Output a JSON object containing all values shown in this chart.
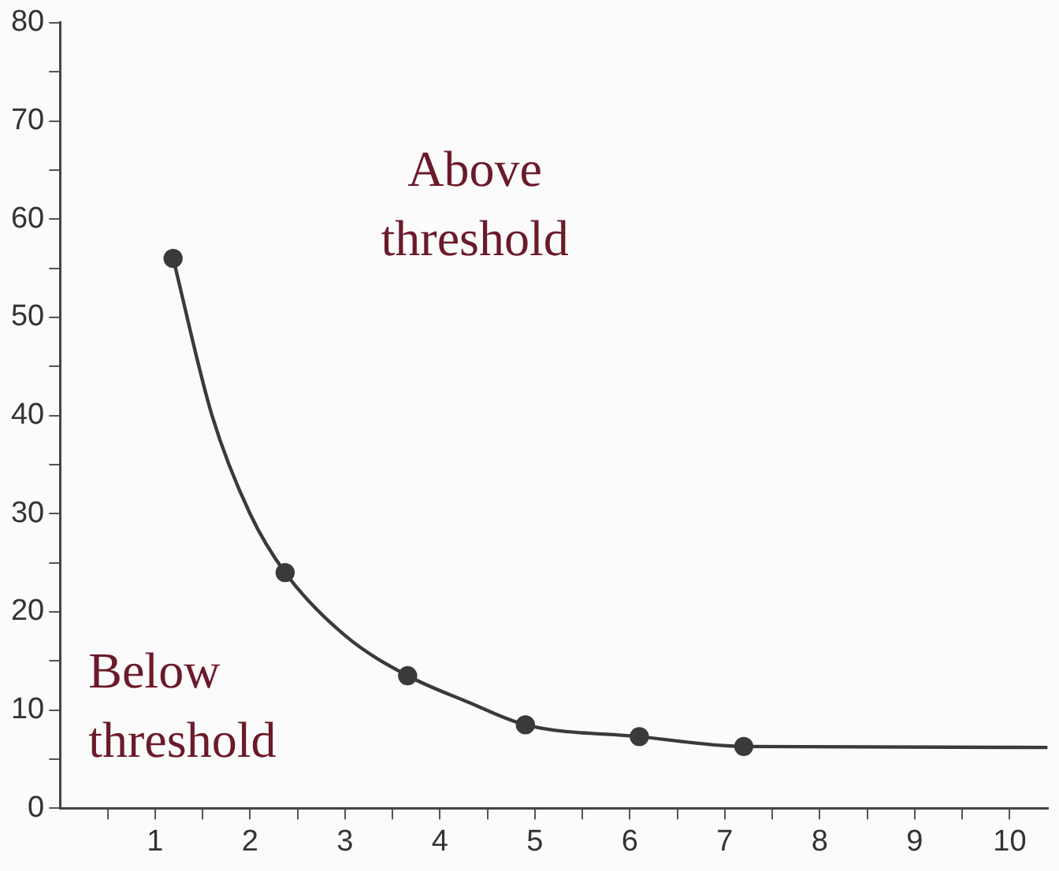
{
  "chart_data": {
    "type": "line",
    "series": [
      {
        "color": "#3a3a3a",
        "marker": "none",
        "x": [
          1.19,
          1.6,
          2.0,
          2.37,
          3.0,
          3.66,
          4.3,
          4.9,
          6.1,
          7.2,
          10.4
        ],
        "values": [
          56,
          40,
          30,
          24,
          17.6,
          13.5,
          10.8,
          8.5,
          7.3,
          6.3,
          6.2
        ]
      },
      {
        "type": "scatter",
        "color": "#3a3a3a",
        "marker": "circle",
        "x": [
          1.19,
          2.37,
          3.66,
          4.9,
          6.1,
          7.2
        ],
        "values": [
          56,
          24,
          13.5,
          8.5,
          7.3,
          6.3
        ]
      }
    ],
    "xlim": [
      0,
      10.4
    ],
    "xticks": [
      {
        "value": 0.5,
        "label": null
      },
      1,
      {
        "value": 1.5,
        "label": null
      },
      2,
      {
        "value": 2.5,
        "label": null
      },
      3,
      {
        "value": 3.5,
        "label": null
      },
      4,
      {
        "value": 4.5,
        "label": null
      },
      5,
      {
        "value": 5.5,
        "label": null
      },
      6,
      {
        "value": 6.5,
        "label": null
      },
      7,
      {
        "value": 7.5,
        "label": null
      },
      8,
      {
        "value": 8.5,
        "label": null
      },
      9,
      {
        "value": 9.5,
        "label": null
      },
      10
    ],
    "ylim": [
      0,
      80
    ],
    "yticks": [
      0,
      {
        "value": 5,
        "label": null
      },
      10,
      {
        "value": 15,
        "label": null
      },
      20,
      {
        "value": 25,
        "label": null
      },
      30,
      {
        "value": 35,
        "label": null
      },
      40,
      {
        "value": 45,
        "label": null
      },
      50,
      {
        "value": 55,
        "label": null
      },
      60,
      {
        "value": 65,
        "label": null
      },
      70,
      {
        "value": 75,
        "label": null
      },
      80
    ],
    "annotations": [
      "Above threshold",
      "Below threshold"
    ],
    "grid": false,
    "legend": false
  }
}
